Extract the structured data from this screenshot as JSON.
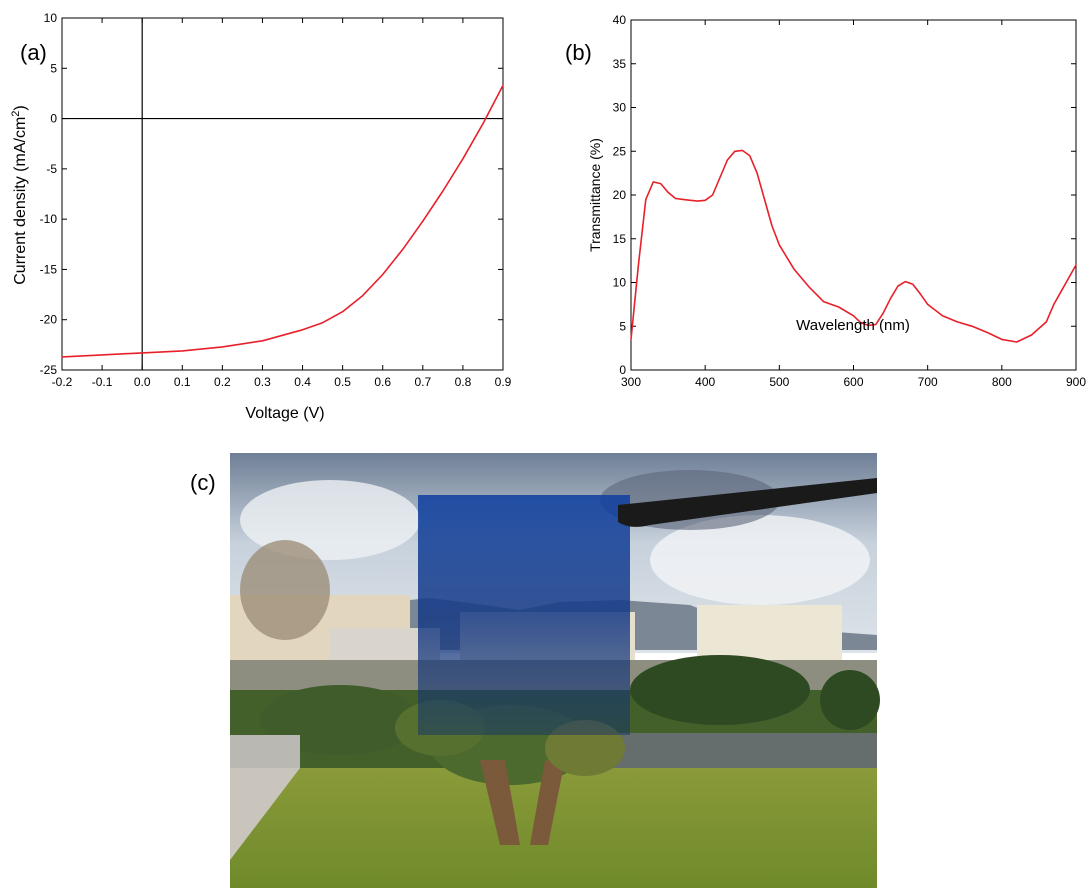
{
  "panels": {
    "a": "(a)",
    "b": "(b)",
    "c": "(c)"
  },
  "colors": {
    "curve": "#e8202a",
    "axis": "#000000"
  },
  "chart_data": [
    {
      "type": "line",
      "panel": "(a)",
      "title": "",
      "xlabel": "Voltage (V)",
      "ylabel": "Current density (mA/cm2)",
      "xlim": [
        -0.2,
        0.9
      ],
      "ylim": [
        -25,
        10
      ],
      "xticks": [
        -0.2,
        -0.1,
        0.0,
        0.1,
        0.2,
        0.3,
        0.4,
        0.5,
        0.6,
        0.7,
        0.8,
        0.9
      ],
      "xtick_labels": [
        "-0.2",
        "-0.1",
        "0.0",
        "0.1",
        "0.2",
        "0.3",
        "0.4",
        "0.5",
        "0.6",
        "0.7",
        "0.8",
        "0.9"
      ],
      "yticks": [
        -25,
        -20,
        -15,
        -10,
        -5,
        0,
        5,
        10
      ],
      "ytick_labels": [
        "-25",
        "-20",
        "-15",
        "-10",
        "-5",
        "0",
        "5",
        "10"
      ],
      "grid": false,
      "reference_lines": {
        "x": 0,
        "y": 0
      },
      "series": [
        {
          "color": "#e8202a",
          "x": [
            -0.2,
            -0.1,
            0.0,
            0.1,
            0.2,
            0.3,
            0.4,
            0.45,
            0.5,
            0.55,
            0.6,
            0.65,
            0.7,
            0.75,
            0.8,
            0.85,
            0.9
          ],
          "y": [
            -23.7,
            -23.5,
            -23.3,
            -23.1,
            -22.7,
            -22.1,
            -21.0,
            -20.3,
            -19.2,
            -17.6,
            -15.5,
            -13.0,
            -10.2,
            -7.2,
            -4.0,
            -0.5,
            3.3
          ]
        }
      ]
    },
    {
      "type": "line",
      "panel": "(b)",
      "title": "",
      "xlabel": "Wavelength (nm)",
      "ylabel": "Transmittance (%)",
      "xlim": [
        300,
        900
      ],
      "ylim": [
        0,
        40
      ],
      "xticks": [
        300,
        400,
        500,
        600,
        700,
        800,
        900
      ],
      "xtick_labels": [
        "300",
        "400",
        "500",
        "600",
        "700",
        "800",
        "900"
      ],
      "yticks": [
        0,
        5,
        10,
        15,
        20,
        25,
        30,
        35,
        40
      ],
      "ytick_labels": [
        "0",
        "5",
        "10",
        "15",
        "20",
        "25",
        "30",
        "35",
        "40"
      ],
      "grid": false,
      "series": [
        {
          "color": "#e8202a",
          "x": [
            300,
            310,
            320,
            330,
            340,
            350,
            360,
            370,
            380,
            390,
            400,
            410,
            420,
            430,
            440,
            450,
            460,
            470,
            480,
            490,
            500,
            520,
            540,
            560,
            580,
            600,
            610,
            620,
            630,
            640,
            650,
            660,
            670,
            680,
            690,
            700,
            720,
            740,
            760,
            780,
            800,
            820,
            840,
            860,
            870,
            880,
            890,
            900
          ],
          "y": [
            3.5,
            12.0,
            19.5,
            21.5,
            21.3,
            20.3,
            19.6,
            19.5,
            19.4,
            19.3,
            19.4,
            20.0,
            22.0,
            24.0,
            25.0,
            25.1,
            24.5,
            22.5,
            19.5,
            16.5,
            14.3,
            11.5,
            9.5,
            7.8,
            7.2,
            6.2,
            5.4,
            5.1,
            5.2,
            6.5,
            8.2,
            9.6,
            10.1,
            9.8,
            8.7,
            7.5,
            6.2,
            5.5,
            5.0,
            4.3,
            3.5,
            3.2,
            4.0,
            5.5,
            7.5,
            9.0,
            10.5,
            12.0
          ]
        }
      ]
    }
  ]
}
